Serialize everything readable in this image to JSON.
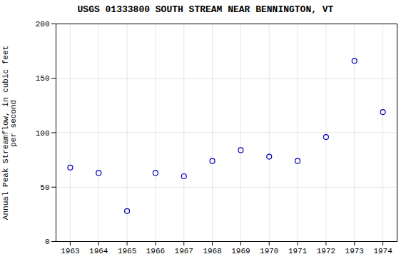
{
  "chart_data": {
    "type": "scatter",
    "title": "USGS 01333800 SOUTH STREAM NEAR BENNINGTON, VT",
    "ylabel": "Annual Peak Streamflow, in cubic feet\n    per second",
    "x": [
      1963,
      1964,
      1965,
      1966,
      1967,
      1968,
      1969,
      1970,
      1971,
      1972,
      1973,
      1974
    ],
    "values": [
      68,
      63,
      28,
      63,
      60,
      74,
      84,
      78,
      74,
      96,
      166,
      119
    ],
    "color": "#0000bb",
    "marker": "circle",
    "xlim": [
      1962.5,
      1974.5
    ],
    "ylim": [
      0,
      200
    ],
    "xticks": [
      1963,
      1964,
      1965,
      1966,
      1967,
      1968,
      1969,
      1970,
      1971,
      1972,
      1973,
      1974
    ],
    "yticks": [
      0,
      50,
      100,
      150,
      200
    ],
    "grid": true
  }
}
